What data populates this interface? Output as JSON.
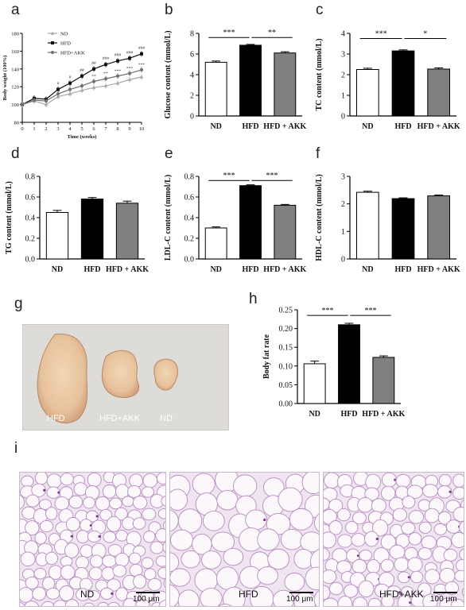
{
  "panel_letters": [
    "a",
    "b",
    "c",
    "d",
    "e",
    "f",
    "g",
    "h",
    "i"
  ],
  "chart_data": [
    {
      "panel": "a",
      "type": "line",
      "ylabel": "Body weight (100%)",
      "xlabel": "Time (weeks)",
      "x": [
        0,
        1,
        2,
        3,
        4,
        5,
        6,
        7,
        8,
        9,
        10
      ],
      "ylim": [
        80,
        180
      ],
      "yticks": [
        80,
        100,
        120,
        140,
        160,
        180
      ],
      "series": [
        {
          "name": "ND",
          "values": [
            100,
            104,
            100,
            109,
            112,
            116,
            119,
            121,
            124,
            128,
            131
          ],
          "color": "#a8a8a8",
          "marker": "triangle"
        },
        {
          "name": "HFD",
          "values": [
            100,
            107,
            106,
            117,
            124,
            132,
            140,
            145,
            149,
            152,
            157
          ],
          "color": "#111111",
          "marker": "square"
        },
        {
          "name": "HFD+AKK",
          "values": [
            100,
            105,
            104,
            112,
            117,
            121,
            126,
            129,
            132,
            135,
            139
          ],
          "color": "#6e6e6e",
          "marker": "circle"
        }
      ],
      "annotations": [
        {
          "x": 3,
          "text": "#"
        },
        {
          "x": 4,
          "text": "#"
        },
        {
          "x": 5,
          "text": "##"
        },
        {
          "x": 6,
          "text": "##"
        },
        {
          "x": 7,
          "text": "###"
        },
        {
          "x": 8,
          "text": "###"
        },
        {
          "x": 9,
          "text": "###"
        },
        {
          "x": 10,
          "text": "###"
        }
      ],
      "annotations_lower": [
        {
          "x": 6,
          "text": "**"
        },
        {
          "x": 7,
          "text": "**"
        },
        {
          "x": 8,
          "text": "***"
        },
        {
          "x": 9,
          "text": "***"
        },
        {
          "x": 10,
          "text": "***"
        }
      ]
    },
    {
      "panel": "b",
      "type": "bar",
      "ylabel": "Glucose content (mmol/L)",
      "categories": [
        "ND",
        "HFD",
        "HFD + AKK"
      ],
      "values": [
        5.2,
        6.85,
        6.1
      ],
      "errors": [
        0.12,
        0.08,
        0.12
      ],
      "ylim": [
        0,
        8
      ],
      "yticks": [
        0,
        2,
        4,
        6,
        8
      ],
      "sig": [
        {
          "from": 0,
          "to": 1,
          "text": "***",
          "y": 7.6
        },
        {
          "from": 1,
          "to": 2,
          "text": "**",
          "y": 7.6
        }
      ]
    },
    {
      "panel": "c",
      "type": "bar",
      "ylabel": "TC content (mmol/L)",
      "categories": [
        "ND",
        "HFD",
        "HFD + AKK"
      ],
      "values": [
        2.25,
        3.15,
        2.27
      ],
      "errors": [
        0.06,
        0.05,
        0.06
      ],
      "ylim": [
        0,
        4
      ],
      "yticks": [
        0,
        1,
        2,
        3,
        4
      ],
      "sig": [
        {
          "from": 0,
          "to": 1,
          "text": "***",
          "y": 3.75
        },
        {
          "from": 1,
          "to": 2,
          "text": "*",
          "y": 3.75
        }
      ]
    },
    {
      "panel": "d",
      "type": "bar",
      "ylabel": "TG content (mmol/L)",
      "categories": [
        "ND",
        "HFD",
        "HFD + AKK"
      ],
      "values": [
        0.45,
        0.58,
        0.54
      ],
      "errors": [
        0.02,
        0.015,
        0.02
      ],
      "ylim": [
        0,
        0.8
      ],
      "yticks": [
        0.0,
        0.2,
        0.4,
        0.6,
        0.8
      ],
      "sig": []
    },
    {
      "panel": "e",
      "type": "bar",
      "ylabel": "LDL-C content (mmol/L)",
      "categories": [
        "ND",
        "HFD",
        "HFD + AKK"
      ],
      "values": [
        0.3,
        0.71,
        0.52
      ],
      "errors": [
        0.01,
        0.008,
        0.008
      ],
      "ylim": [
        0,
        0.8
      ],
      "yticks": [
        0.0,
        0.2,
        0.4,
        0.6,
        0.8
      ],
      "sig": [
        {
          "from": 0,
          "to": 1,
          "text": "***",
          "y": 0.76
        },
        {
          "from": 1,
          "to": 2,
          "text": "***",
          "y": 0.76
        }
      ]
    },
    {
      "panel": "f",
      "type": "bar",
      "ylabel": "HDL-C content (mmol/L)",
      "categories": [
        "ND",
        "HFD",
        "HFD + AKK"
      ],
      "values": [
        2.42,
        2.19,
        2.29
      ],
      "errors": [
        0.04,
        0.03,
        0.03
      ],
      "ylim": [
        0,
        3
      ],
      "yticks": [
        0,
        1,
        2,
        3
      ],
      "sig": []
    },
    {
      "panel": "h",
      "type": "bar",
      "ylabel": "Body fat rate",
      "categories": [
        "ND",
        "HFD",
        "HFD + AKK"
      ],
      "values": [
        0.106,
        0.21,
        0.123
      ],
      "errors": [
        0.007,
        0.004,
        0.004
      ],
      "ylim": [
        0,
        0.25
      ],
      "yticks": [
        0.0,
        0.05,
        0.1,
        0.15,
        0.2,
        0.25
      ],
      "sig": [
        {
          "from": 0,
          "to": 1,
          "text": "***",
          "y": 0.235
        },
        {
          "from": 1,
          "to": 2,
          "text": "***",
          "y": 0.235
        }
      ]
    }
  ],
  "bar_colors": [
    "#ffffff",
    "#000000",
    "#808080"
  ],
  "photo_g": {
    "labels": [
      "HFD",
      "HFD+AKK",
      "ND"
    ]
  },
  "histology_i": {
    "labels": [
      "ND",
      "HFD",
      "HFD+AKK"
    ],
    "scale": "100 μm"
  }
}
